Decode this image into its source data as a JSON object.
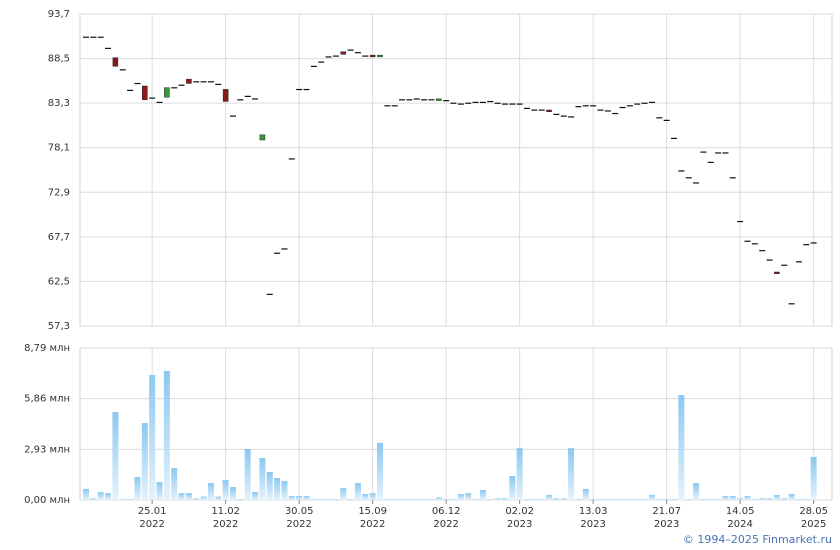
{
  "chart_data": {
    "type": "candlestick",
    "categories": [
      null,
      null,
      null,
      null,
      null,
      null,
      null,
      null,
      null,
      "25.01\n2022",
      null,
      null,
      null,
      null,
      null,
      null,
      null,
      null,
      null,
      "11.02\n2022",
      null,
      null,
      null,
      null,
      null,
      null,
      null,
      null,
      null,
      "30.05\n2022",
      null,
      null,
      null,
      null,
      null,
      null,
      null,
      null,
      null,
      "15.09\n2022",
      null,
      null,
      null,
      null,
      null,
      null,
      null,
      null,
      null,
      "06.12\n2022",
      null,
      null,
      null,
      null,
      null,
      null,
      null,
      null,
      null,
      "02.02\n2023",
      null,
      null,
      null,
      null,
      null,
      null,
      null,
      null,
      null,
      "13.03\n2023",
      null,
      null,
      null,
      null,
      null,
      null,
      null,
      null,
      null,
      "21.07\n2023",
      null,
      null,
      null,
      null,
      null,
      null,
      null,
      null,
      null,
      "14.05\n2024",
      null,
      null,
      null,
      null,
      null,
      null,
      null,
      null,
      null,
      "28.05\n2025"
    ],
    "open": [
      91.0,
      91.0,
      91.0,
      89.7,
      88.6,
      87.2,
      84.8,
      85.6,
      85.3,
      83.9,
      83.4,
      84.0,
      85.1,
      85.4,
      86.1,
      85.8,
      85.8,
      85.8,
      85.5,
      84.9,
      81.8,
      83.7,
      84.1,
      83.8,
      79.0,
      61.0,
      65.8,
      66.3,
      76.8,
      84.9,
      84.9,
      87.6,
      88.1,
      88.7,
      88.8,
      89.3,
      89.5,
      89.2,
      88.8,
      88.9,
      88.7,
      83.0,
      83.0,
      83.7,
      83.7,
      83.8,
      83.7,
      83.7,
      83.6,
      83.6,
      83.3,
      83.2,
      83.3,
      83.4,
      83.4,
      83.5,
      83.3,
      83.2,
      83.2,
      83.2,
      82.7,
      82.5,
      82.5,
      82.5,
      82.0,
      81.8,
      81.7,
      82.9,
      83.0,
      83.0,
      82.5,
      82.4,
      82.1,
      82.8,
      83.0,
      83.2,
      83.3,
      83.4,
      81.6,
      81.3,
      79.2,
      75.4,
      74.6,
      74.0,
      77.6,
      76.4,
      77.5,
      77.5,
      74.6,
      69.5,
      67.2,
      66.9,
      66.1,
      65.0,
      63.6,
      64.4,
      59.9,
      64.8,
      66.8,
      67.0
    ],
    "close": [
      91.0,
      91.0,
      91.0,
      89.7,
      87.6,
      87.2,
      84.8,
      85.6,
      83.7,
      83.9,
      83.4,
      85.1,
      85.1,
      85.4,
      85.6,
      85.8,
      85.8,
      85.8,
      85.5,
      83.5,
      81.8,
      83.7,
      84.1,
      83.8,
      79.6,
      61.0,
      65.8,
      66.3,
      76.8,
      84.9,
      84.9,
      87.6,
      88.1,
      88.7,
      88.8,
      89.0,
      89.5,
      89.2,
      88.8,
      88.7,
      88.9,
      83.0,
      83.0,
      83.7,
      83.7,
      83.8,
      83.7,
      83.7,
      83.8,
      83.6,
      83.3,
      83.2,
      83.3,
      83.4,
      83.4,
      83.5,
      83.3,
      83.2,
      83.2,
      83.2,
      82.7,
      82.5,
      82.5,
      82.3,
      82.0,
      81.8,
      81.7,
      82.9,
      83.0,
      83.0,
      82.5,
      82.4,
      82.1,
      82.8,
      83.0,
      83.2,
      83.3,
      83.4,
      81.6,
      81.3,
      79.2,
      75.4,
      74.6,
      74.0,
      77.6,
      76.4,
      77.5,
      77.5,
      74.6,
      69.5,
      67.2,
      66.9,
      66.1,
      65.0,
      63.4,
      64.4,
      59.9,
      64.8,
      66.8,
      67.0
    ],
    "up_color": "#3c9a3c",
    "down_color": "#8b1a1a",
    "flat_color": "#111111",
    "ylim": [
      57.3,
      93.7
    ],
    "yticks": [
      {
        "value": 57.3,
        "label": "57,3"
      },
      {
        "value": 62.5,
        "label": "62,5"
      },
      {
        "value": 67.7,
        "label": "67,7"
      },
      {
        "value": 72.9,
        "label": "72,9"
      },
      {
        "value": 78.1,
        "label": "78,1"
      },
      {
        "value": 83.3,
        "label": "83,3"
      },
      {
        "value": 88.5,
        "label": "88,5"
      },
      {
        "value": 93.7,
        "label": "93,7"
      }
    ],
    "grid": true,
    "volume": {
      "color": "#8cc8f0",
      "values": [
        0.64,
        0.1,
        0.46,
        0.4,
        5.09,
        0.05,
        0.05,
        1.33,
        4.45,
        7.23,
        1.04,
        7.46,
        1.85,
        0.4,
        0.4,
        0.1,
        0.2,
        0.98,
        0.2,
        1.16,
        0.75,
        0.05,
        2.95,
        0.46,
        2.43,
        1.62,
        1.27,
        1.1,
        0.23,
        0.23,
        0.23,
        0.05,
        0.05,
        0.05,
        0.05,
        0.69,
        0.05,
        0.98,
        0.35,
        0.4,
        3.3,
        0.05,
        0.05,
        0.05,
        0.05,
        0.05,
        0.05,
        0.05,
        0.15,
        0.05,
        0.05,
        0.35,
        0.4,
        0.05,
        0.58,
        0.05,
        0.1,
        0.1,
        1.39,
        3.0,
        0.05,
        0.05,
        0.05,
        0.29,
        0.1,
        0.1,
        3.0,
        0.05,
        0.64,
        0.05,
        0.05,
        0.05,
        0.05,
        0.05,
        0.05,
        0.05,
        0.05,
        0.29,
        0.05,
        0.05,
        0.05,
        6.07,
        0.05,
        0.98,
        0.05,
        0.05,
        0.05,
        0.23,
        0.23,
        0.1,
        0.23,
        0.05,
        0.1,
        0.1,
        0.29,
        0.1,
        0.35,
        0.05,
        0.05,
        2.49
      ],
      "ylim": [
        0,
        8.79
      ],
      "yticks": [
        {
          "value": 0,
          "label": "0,00 млн"
        },
        {
          "value": 2.93,
          "label": "2,93 млн"
        },
        {
          "value": 5.86,
          "label": "5,86 млн"
        },
        {
          "value": 8.79,
          "label": "8,79 млн"
        }
      ]
    },
    "credit": "© 1994–2025 Finmarket.ru"
  }
}
